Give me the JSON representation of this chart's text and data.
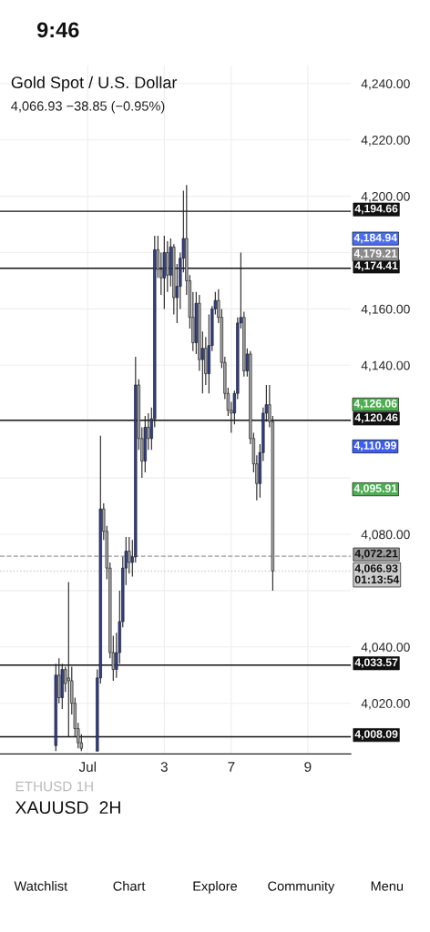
{
  "chart_data": {
    "type": "candlestick",
    "title": "Gold Spot / U.S. Dollar",
    "subtitle": "4,066.93 −38.85 (−0.95%)",
    "categories": [
      null,
      null,
      null,
      null,
      null,
      null,
      null,
      null,
      null,
      null,
      null,
      null,
      null,
      null,
      null,
      null,
      null,
      null,
      null,
      null,
      null,
      null,
      null,
      null,
      null,
      null,
      null,
      "Jul",
      null,
      null,
      null,
      null,
      null,
      null,
      null,
      null,
      null,
      null,
      null,
      null,
      null,
      null,
      null,
      null,
      null,
      null,
      null,
      null,
      null,
      null,
      null,
      "3",
      null,
      null,
      null,
      null,
      null,
      null,
      null,
      null,
      null,
      null,
      null,
      null,
      null,
      null,
      null,
      null,
      null,
      null,
      null,
      null,
      "7",
      null,
      null,
      null,
      null,
      null,
      null,
      null,
      null,
      null,
      null,
      null,
      null,
      null,
      null,
      null,
      null,
      null,
      null,
      null,
      null,
      null,
      null,
      null,
      "9",
      null,
      null,
      null,
      null,
      null,
      null,
      null,
      null,
      null,
      null,
      null,
      null,
      null
    ],
    "ohlc": [
      null,
      null,
      null,
      null,
      null,
      null,
      null,
      null,
      null,
      null,
      null,
      null,
      null,
      null,
      null,
      null,
      null,
      [
        4005,
        4034,
        4003,
        4030
      ],
      [
        4030,
        4036,
        4020,
        4022
      ],
      [
        4022,
        4034,
        4018,
        4032
      ],
      [
        4032,
        4033,
        4024,
        4027
      ],
      [
        4029,
        4063,
        4008,
        4028
      ],
      [
        4028,
        4033,
        4016,
        4020
      ],
      [
        4020,
        4022,
        4008,
        4011
      ],
      [
        4011,
        4013,
        4004,
        4006
      ],
      [
        4006,
        4009,
        4003,
        4004
      ],
      null,
      null,
      null,
      null,
      [
        4003,
        4032,
        4003,
        4029
      ],
      [
        4029,
        4115,
        4027,
        4089
      ],
      [
        4089,
        4091,
        4078,
        4081
      ],
      [
        4081,
        4083,
        4064,
        4068
      ],
      [
        4068,
        4070,
        4036,
        4038
      ],
      [
        4038,
        4044,
        4028,
        4032
      ],
      [
        4032,
        4045,
        4029,
        4038
      ],
      [
        4038,
        4060,
        4034,
        4049
      ],
      [
        4049,
        4072,
        4047,
        4068
      ],
      [
        4068,
        4079,
        4062,
        4074
      ],
      [
        4074,
        4079,
        4066,
        4070
      ],
      [
        4070,
        4078,
        4065,
        4072
      ],
      [
        4072,
        4143,
        4070,
        4133
      ],
      [
        4133,
        4135,
        4110,
        4114
      ],
      [
        4114,
        4118,
        4100,
        4106
      ],
      [
        4106,
        4122,
        4102,
        4118
      ],
      [
        4118,
        4123,
        4110,
        4114
      ],
      [
        4114,
        4125,
        4110,
        4121
      ],
      [
        4121,
        4186,
        4118,
        4181
      ],
      [
        4181,
        4186,
        4171,
        4174
      ],
      [
        4174,
        4180,
        4165,
        4171
      ],
      [
        4171,
        4186,
        4160,
        4180
      ],
      [
        4180,
        4184,
        4166,
        4172
      ],
      [
        4172,
        4185,
        4168,
        4182
      ],
      [
        4182,
        4183,
        4158,
        4164
      ],
      [
        4164,
        4176,
        4155,
        4168
      ],
      [
        4168,
        4180,
        4160,
        4178
      ],
      [
        4178,
        4202,
        4173,
        4185
      ],
      [
        4185,
        4204,
        4165,
        4170
      ],
      [
        4170,
        4172,
        4153,
        4157
      ],
      [
        4157,
        4166,
        4145,
        4148
      ],
      [
        4148,
        4166,
        4144,
        4162
      ],
      [
        4162,
        4165,
        4138,
        4142
      ],
      [
        4142,
        4152,
        4130,
        4146
      ],
      [
        4146,
        4150,
        4133,
        4137
      ],
      [
        4137,
        4158,
        4130,
        4147
      ],
      [
        4147,
        4161,
        4145,
        4160
      ],
      [
        4160,
        4166,
        4158,
        4163
      ],
      [
        4163,
        4167,
        4155,
        4157
      ],
      [
        4157,
        4160,
        4139,
        4141
      ],
      [
        4141,
        4143,
        4128,
        4130
      ],
      [
        4130,
        4132,
        4122,
        4124
      ],
      [
        4124,
        4127,
        4116,
        4123
      ],
      [
        4123,
        4131,
        4119,
        4130
      ],
      [
        4130,
        4157,
        4128,
        4155
      ],
      [
        4155,
        4180,
        4153,
        4157
      ],
      [
        4157,
        4159,
        4136,
        4138
      ],
      [
        4138,
        4146,
        4136,
        4144
      ],
      [
        4144,
        4145,
        4112,
        4114
      ],
      [
        4114,
        4116,
        4102,
        4105
      ],
      [
        4105,
        4108,
        4092,
        4098
      ],
      [
        4098,
        4112,
        4093,
        4109
      ],
      [
        4109,
        4125,
        4106,
        4123
      ],
      [
        4123,
        4133,
        4120,
        4126
      ],
      [
        4126,
        4133,
        4118,
        4120
      ],
      [
        4120,
        4122,
        4060,
        4066.93
      ],
      null,
      null,
      null,
      null,
      null,
      null,
      null,
      null,
      null,
      null,
      null,
      null,
      null,
      null,
      null,
      null,
      null,
      null,
      null,
      null,
      null,
      null,
      null,
      null
    ],
    "colors": [
      null,
      null,
      null,
      null,
      null,
      null,
      null,
      null,
      null,
      null,
      null,
      null,
      null,
      null,
      null,
      null,
      null,
      "#2f3f94",
      "#a6a6a6",
      "#2f3f94",
      "#a6a6a6",
      "#a6a6a6",
      "#a6a6a6",
      "#a6a6a6",
      "#a6a6a6",
      "#a6a6a6",
      null,
      null,
      null,
      null,
      "#2f3f94",
      "#2f3f94",
      "#a6a6a6",
      "#a6a6a6",
      "#a6a6a6",
      "#a6a6a6",
      "#2f3f94",
      "#2f3f94",
      "#2f3f94",
      "#2f3f94",
      "#a6a6a6",
      "#2f3f94",
      "#2f3f94",
      "#a6a6a6",
      "#a6a6a6",
      "#2f3f94",
      "#a6a6a6",
      "#2f3f94",
      "#2f3f94",
      "#a6a6a6",
      "#a6a6a6",
      "#2f3f94",
      "#a6a6a6",
      "#2f3f94",
      "#a6a6a6",
      "#2f3f94",
      "#2f3f94",
      "#2f3f94",
      "#a6a6a6",
      "#a6a6a6",
      "#a6a6a6",
      "#2f3f94",
      "#a6a6a6",
      "#2f3f94",
      "#a6a6a6",
      "#2f3f94",
      "#2f3f94",
      "#2f3f94",
      "#a6a6a6",
      "#a6a6a6",
      "#a6a6a6",
      "#a6a6a6",
      "#a6a6a6",
      "#2f3f94",
      "#2f3f94",
      "#2f3f94",
      "#a6a6a6",
      "#2f3f94",
      "#a6a6a6",
      "#a6a6a6",
      "#a6a6a6",
      "#2f3f94",
      "#2f3f94",
      "#2f3f94",
      "#a6a6a6",
      "#a6a6a6",
      null,
      null,
      null,
      null,
      null,
      null,
      null,
      null,
      null,
      null,
      null,
      null,
      null,
      null,
      null,
      null,
      null,
      null,
      null,
      null,
      null,
      null,
      null,
      null
    ],
    "ylim": [
      4002,
      4246.5
    ],
    "yticks": [
      {
        "value": 4020,
        "label": "4,020.00"
      },
      {
        "value": 4040,
        "label": "4,040.00"
      },
      {
        "value": 4060,
        "label": null
      },
      {
        "value": 4080,
        "label": "4,080.00"
      },
      {
        "value": 4100,
        "label": null
      },
      {
        "value": 4120,
        "label": null
      },
      {
        "value": 4140,
        "label": "4,140.00"
      },
      {
        "value": 4160,
        "label": "4,160.00"
      },
      {
        "value": 4180,
        "label": null
      },
      {
        "value": 4200,
        "label": "4,200.00"
      },
      {
        "value": 4220,
        "label": "4,220.00"
      },
      {
        "value": 4240,
        "label": "4,240.00"
      }
    ],
    "grid": true,
    "ref_lines": [
      {
        "axis": "y",
        "value": 4194.66,
        "label": "4,194.66",
        "color": "#111111",
        "line_style": "solid"
      },
      {
        "axis": "y",
        "value": 4174.41,
        "label": "4,174.41",
        "color": "#111111",
        "line_style": "solid"
      },
      {
        "axis": "y",
        "value": 4120.46,
        "label": "4,120.46",
        "color": "#111111",
        "line_style": "solid"
      },
      {
        "axis": "y",
        "value": 4072.21,
        "label": "4,072.21",
        "color": "#9a9a9a",
        "line_style": "dashed"
      },
      {
        "axis": "y",
        "value": 4066.93,
        "label": "4,066.93\n01:13:54",
        "color": "#cccccc",
        "line_style": "dotted"
      },
      {
        "axis": "y",
        "value": 4033.57,
        "label": "4,033.57",
        "color": "#111111",
        "line_style": "solid"
      },
      {
        "axis": "y",
        "value": 4008.09,
        "label": "4,008.09",
        "color": "#111111",
        "line_style": "solid"
      }
    ],
    "annotations": [
      "4,184.94",
      "4,179.21",
      "4,126.06",
      "4,110.99",
      "4,095.91",
      "9:46",
      "ETHUSD 1H",
      "XAUUSD",
      "2H",
      "Watchlist",
      "Chart",
      "Explore",
      "Community",
      "Menu"
    ]
  }
}
